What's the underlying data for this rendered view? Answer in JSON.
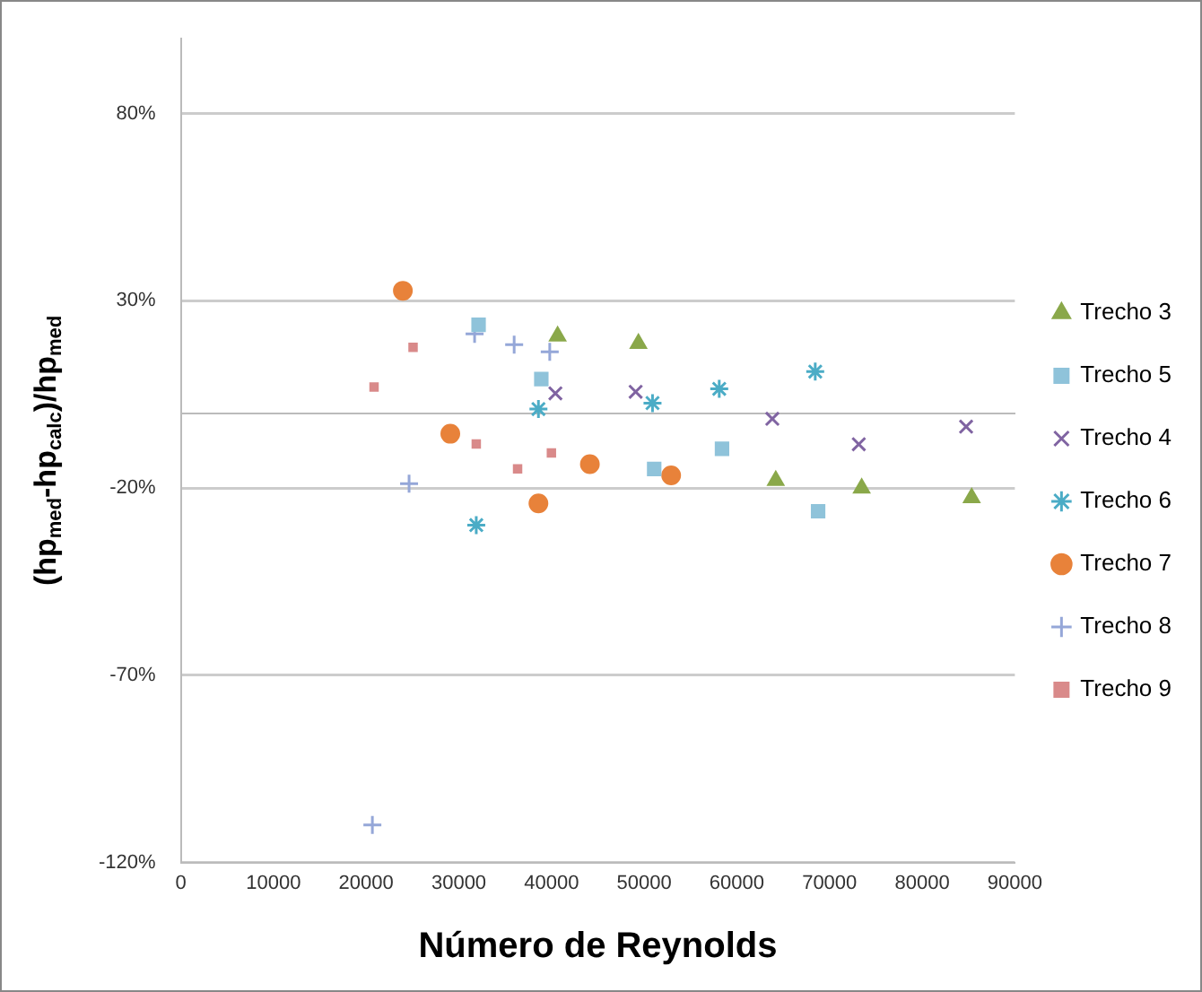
{
  "chart_data": {
    "type": "scatter",
    "xlabel": "Número de Reynolds",
    "ylabel": "(hp$_{med}$-hp$_{calc}$)/hp$_{med}$",
    "xlim": [
      0,
      90000
    ],
    "xticks": [
      0,
      10000,
      20000,
      30000,
      40000,
      50000,
      60000,
      70000,
      80000,
      90000
    ],
    "ylim": [
      -120,
      100
    ],
    "yticks": [
      {
        "value": -120,
        "label": "-120%"
      },
      {
        "value": -70,
        "label": "-70%"
      },
      {
        "value": -20,
        "label": "-20%"
      },
      {
        "value": 30,
        "label": "30%"
      },
      {
        "value": 80,
        "label": "80%"
      }
    ],
    "grid": "y",
    "legend": "right",
    "series": [
      {
        "name": "Trecho 3",
        "color": "#8aa84a",
        "marker": "triangle",
        "x": [
          40660,
          49380,
          64200,
          73470,
          85340
        ],
        "values": [
          20.6,
          18.6,
          -18.0,
          -20.0,
          -22.6
        ]
      },
      {
        "name": "Trecho 5",
        "color": "#8fc3da",
        "marker": "square",
        "x": [
          32130,
          38900,
          51080,
          58400,
          68770
        ],
        "values": [
          23.6,
          9.1,
          -14.9,
          -9.5,
          -26.2
        ]
      },
      {
        "name": "Trecho 4",
        "color": "#8064a2",
        "marker": "cross",
        "x": [
          40420,
          49080,
          63830,
          73160,
          84740
        ],
        "values": [
          5.3,
          5.7,
          -1.5,
          -8.3,
          -3.6
        ]
      },
      {
        "name": "Trecho 6",
        "color": "#4bacc6",
        "marker": "cross",
        "x": [
          31880,
          38590,
          50900,
          58100,
          68460
        ],
        "values": [
          -29.9,
          1.1,
          2.7,
          6.5,
          11.1
        ]
      },
      {
        "name": "Trecho 7",
        "color": "#e8823a",
        "marker": "circle",
        "x": [
          23960,
          29080,
          38590,
          44140,
          52910
        ],
        "values": [
          32.7,
          -5.5,
          -24.1,
          -13.6,
          -16.6
        ]
      },
      {
        "name": "Trecho 8",
        "color": "#95a7d8",
        "marker": "cross",
        "x": [
          20670,
          24630,
          31700,
          35970,
          39810
        ],
        "values": [
          -110,
          -18.8,
          21.2,
          18.3,
          16.4
        ]
      },
      {
        "name": "Trecho 9",
        "color": "#d98a8a",
        "x": [
          20850,
          25060,
          31880,
          36340,
          39990
        ],
        "values": [
          7.0,
          17.6,
          -8.2,
          -14.9,
          -10.6
        ]
      }
    ]
  }
}
